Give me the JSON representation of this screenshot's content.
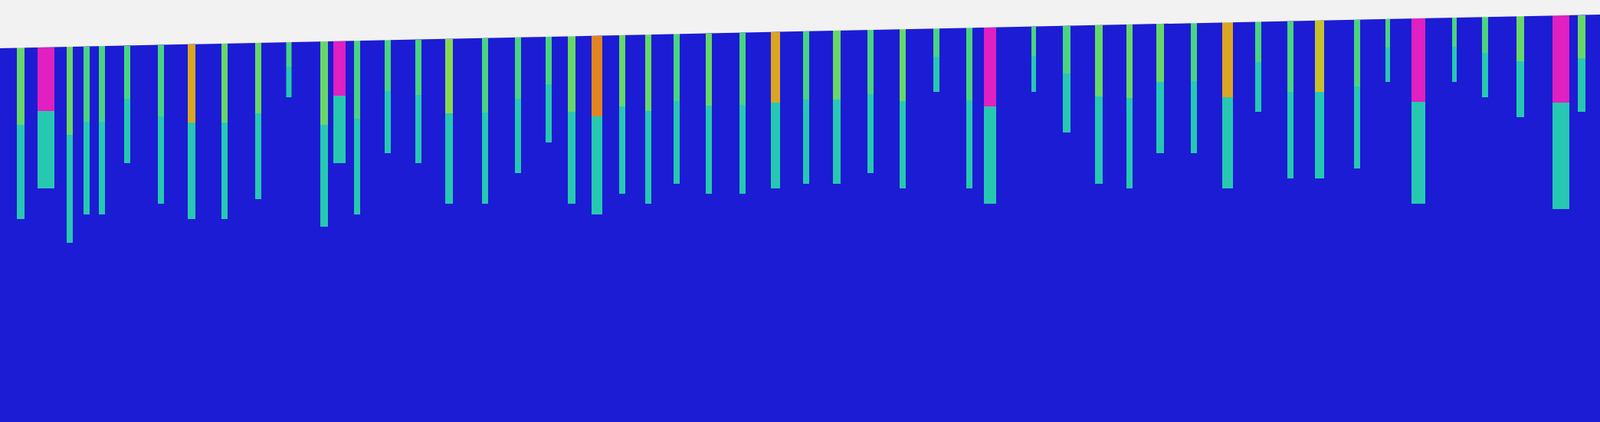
{
  "chart_data": {
    "type": "heatmap",
    "tick_labels": false,
    "xlim": [
      0,
      2088
    ],
    "ylim": [
      551,
      0
    ],
    "zlim": [
      0,
      1
    ],
    "surface": {
      "x": [
        0,
        2088
      ],
      "y": [
        63,
        19
      ],
      "color": "#f2f2f2"
    },
    "cells": [
      {
        "x": 27,
        "width": 10,
        "y0": 62,
        "y1": 163,
        "value": 0.45
      },
      {
        "x": 27,
        "width": 10,
        "y0": 163,
        "y1": 286,
        "value": 0.3
      },
      {
        "x": 60,
        "width": 22,
        "y0": 62,
        "y1": 145,
        "value": 1
      },
      {
        "x": 60,
        "width": 22,
        "y0": 145,
        "y1": 246,
        "value": 0.3
      },
      {
        "x": 91,
        "width": 8,
        "y0": 61,
        "y1": 176,
        "value": 0.45
      },
      {
        "x": 91,
        "width": 8,
        "y0": 176,
        "y1": 317,
        "value": 0.3
      },
      {
        "x": 113,
        "width": 8,
        "y0": 61,
        "y1": 159,
        "value": 0.4
      },
      {
        "x": 113,
        "width": 8,
        "y0": 159,
        "y1": 280,
        "value": 0.3
      },
      {
        "x": 133,
        "width": 8,
        "y0": 60,
        "y1": 159,
        "value": 0.4
      },
      {
        "x": 133,
        "width": 8,
        "y0": 159,
        "y1": 280,
        "value": 0.3
      },
      {
        "x": 166,
        "width": 8,
        "y0": 60,
        "y1": 129,
        "value": 0.4
      },
      {
        "x": 166,
        "width": 8,
        "y0": 129,
        "y1": 213,
        "value": 0.3
      },
      {
        "x": 210,
        "width": 8,
        "y0": 59,
        "y1": 152,
        "value": 0.4
      },
      {
        "x": 210,
        "width": 8,
        "y0": 152,
        "y1": 266,
        "value": 0.3
      },
      {
        "x": 250,
        "width": 10,
        "y0": 58,
        "y1": 160,
        "value": 0.65
      },
      {
        "x": 250,
        "width": 10,
        "y0": 160,
        "y1": 286,
        "value": 0.3
      },
      {
        "x": 293,
        "width": 8,
        "y0": 57,
        "y1": 160,
        "value": 0.45
      },
      {
        "x": 293,
        "width": 8,
        "y0": 160,
        "y1": 286,
        "value": 0.3
      },
      {
        "x": 337,
        "width": 8,
        "y0": 56,
        "y1": 148,
        "value": 0.45
      },
      {
        "x": 337,
        "width": 8,
        "y0": 148,
        "y1": 260,
        "value": 0.3
      },
      {
        "x": 377,
        "width": 7,
        "y0": 55,
        "y1": 87,
        "value": 0.4
      },
      {
        "x": 377,
        "width": 7,
        "y0": 87,
        "y1": 127,
        "value": 0.3
      },
      {
        "x": 423,
        "width": 10,
        "y0": 54,
        "y1": 163,
        "value": 0.45
      },
      {
        "x": 423,
        "width": 10,
        "y0": 163,
        "y1": 296,
        "value": 0.3
      },
      {
        "x": 443,
        "width": 16,
        "y0": 54,
        "y1": 125,
        "value": 1
      },
      {
        "x": 443,
        "width": 16,
        "y0": 125,
        "y1": 213,
        "value": 0.3
      },
      {
        "x": 466,
        "width": 8,
        "y0": 53,
        "y1": 155,
        "value": 0.4
      },
      {
        "x": 466,
        "width": 8,
        "y0": 155,
        "y1": 280,
        "value": 0.3
      },
      {
        "x": 506,
        "width": 8,
        "y0": 52,
        "y1": 119,
        "value": 0.4
      },
      {
        "x": 506,
        "width": 8,
        "y0": 119,
        "y1": 200,
        "value": 0.3
      },
      {
        "x": 546,
        "width": 8,
        "y0": 52,
        "y1": 124,
        "value": 0.4
      },
      {
        "x": 546,
        "width": 8,
        "y0": 124,
        "y1": 213,
        "value": 0.3
      },
      {
        "x": 586,
        "width": 10,
        "y0": 51,
        "y1": 148,
        "value": 0.5
      },
      {
        "x": 586,
        "width": 10,
        "y0": 148,
        "y1": 266,
        "value": 0.3
      },
      {
        "x": 633,
        "width": 8,
        "y0": 50,
        "y1": 147,
        "value": 0.4
      },
      {
        "x": 633,
        "width": 8,
        "y0": 147,
        "y1": 266,
        "value": 0.3
      },
      {
        "x": 676,
        "width": 8,
        "y0": 49,
        "y1": 129,
        "value": 0.4
      },
      {
        "x": 676,
        "width": 8,
        "y0": 129,
        "y1": 226,
        "value": 0.3
      },
      {
        "x": 716,
        "width": 8,
        "y0": 48,
        "y1": 110,
        "value": 0.4
      },
      {
        "x": 716,
        "width": 8,
        "y0": 110,
        "y1": 186,
        "value": 0.3
      },
      {
        "x": 746,
        "width": 10,
        "y0": 47,
        "y1": 146,
        "value": 0.45
      },
      {
        "x": 746,
        "width": 10,
        "y0": 146,
        "y1": 266,
        "value": 0.3
      },
      {
        "x": 779,
        "width": 14,
        "y0": 47,
        "y1": 152,
        "value": 0.7
      },
      {
        "x": 779,
        "width": 14,
        "y0": 152,
        "y1": 280,
        "value": 0.3
      },
      {
        "x": 812,
        "width": 8,
        "y0": 46,
        "y1": 139,
        "value": 0.45
      },
      {
        "x": 812,
        "width": 8,
        "y0": 139,
        "y1": 253,
        "value": 0.3
      },
      {
        "x": 846,
        "width": 8,
        "y0": 45,
        "y1": 145,
        "value": 0.45
      },
      {
        "x": 846,
        "width": 8,
        "y0": 145,
        "y1": 266,
        "value": 0.3
      },
      {
        "x": 883,
        "width": 8,
        "y0": 44,
        "y1": 132,
        "value": 0.4
      },
      {
        "x": 883,
        "width": 8,
        "y0": 132,
        "y1": 240,
        "value": 0.3
      },
      {
        "x": 925,
        "width": 8,
        "y0": 44,
        "y1": 138,
        "value": 0.45
      },
      {
        "x": 925,
        "width": 8,
        "y0": 138,
        "y1": 253,
        "value": 0.3
      },
      {
        "x": 969,
        "width": 8,
        "y0": 43,
        "y1": 137,
        "value": 0.4
      },
      {
        "x": 969,
        "width": 8,
        "y0": 137,
        "y1": 253,
        "value": 0.3
      },
      {
        "x": 1012,
        "width": 12,
        "y0": 42,
        "y1": 134,
        "value": 0.65
      },
      {
        "x": 1012,
        "width": 12,
        "y0": 134,
        "y1": 246,
        "value": 0.3
      },
      {
        "x": 1052,
        "width": 8,
        "y0": 41,
        "y1": 130,
        "value": 0.4
      },
      {
        "x": 1052,
        "width": 8,
        "y0": 130,
        "y1": 240,
        "value": 0.3
      },
      {
        "x": 1092,
        "width": 10,
        "y0": 40,
        "y1": 130,
        "value": 0.45
      },
      {
        "x": 1092,
        "width": 10,
        "y0": 130,
        "y1": 240,
        "value": 0.3
      },
      {
        "x": 1136,
        "width": 8,
        "y0": 39,
        "y1": 123,
        "value": 0.4
      },
      {
        "x": 1136,
        "width": 8,
        "y0": 123,
        "y1": 226,
        "value": 0.3
      },
      {
        "x": 1178,
        "width": 8,
        "y0": 38,
        "y1": 132,
        "value": 0.45
      },
      {
        "x": 1178,
        "width": 8,
        "y0": 132,
        "y1": 246,
        "value": 0.3
      },
      {
        "x": 1222,
        "width": 8,
        "y0": 37,
        "y1": 74,
        "value": 0.4
      },
      {
        "x": 1222,
        "width": 8,
        "y0": 74,
        "y1": 120,
        "value": 0.3
      },
      {
        "x": 1265,
        "width": 8,
        "y0": 36,
        "y1": 131,
        "value": 0.4
      },
      {
        "x": 1265,
        "width": 8,
        "y0": 131,
        "y1": 246,
        "value": 0.3
      },
      {
        "x": 1292,
        "width": 16,
        "y0": 36,
        "y1": 139,
        "value": 1
      },
      {
        "x": 1292,
        "width": 16,
        "y0": 139,
        "y1": 266,
        "value": 0.3
      },
      {
        "x": 1349,
        "width": 6,
        "y0": 35,
        "y1": 73,
        "value": 0.4
      },
      {
        "x": 1349,
        "width": 6,
        "y0": 73,
        "y1": 120,
        "value": 0.3
      },
      {
        "x": 1392,
        "width": 10,
        "y0": 34,
        "y1": 96,
        "value": 0.4
      },
      {
        "x": 1392,
        "width": 10,
        "y0": 96,
        "y1": 173,
        "value": 0.3
      },
      {
        "x": 1434,
        "width": 10,
        "y0": 33,
        "y1": 126,
        "value": 0.45
      },
      {
        "x": 1434,
        "width": 10,
        "y0": 126,
        "y1": 240,
        "value": 0.3
      },
      {
        "x": 1474,
        "width": 8,
        "y0": 32,
        "y1": 128,
        "value": 0.45
      },
      {
        "x": 1474,
        "width": 8,
        "y0": 128,
        "y1": 246,
        "value": 0.3
      },
      {
        "x": 1514,
        "width": 10,
        "y0": 31,
        "y1": 107,
        "value": 0.45
      },
      {
        "x": 1514,
        "width": 10,
        "y0": 107,
        "y1": 200,
        "value": 0.3
      },
      {
        "x": 1558,
        "width": 8,
        "y0": 30,
        "y1": 106,
        "value": 0.4
      },
      {
        "x": 1558,
        "width": 8,
        "y0": 106,
        "y1": 200,
        "value": 0.3
      },
      {
        "x": 1602,
        "width": 14,
        "y0": 29,
        "y1": 127,
        "value": 0.65
      },
      {
        "x": 1602,
        "width": 14,
        "y0": 127,
        "y1": 246,
        "value": 0.3
      },
      {
        "x": 1642,
        "width": 8,
        "y0": 28,
        "y1": 81,
        "value": 0.4
      },
      {
        "x": 1642,
        "width": 8,
        "y0": 81,
        "y1": 146,
        "value": 0.3
      },
      {
        "x": 1684,
        "width": 8,
        "y0": 28,
        "y1": 120,
        "value": 0.4
      },
      {
        "x": 1684,
        "width": 8,
        "y0": 120,
        "y1": 233,
        "value": 0.3
      },
      {
        "x": 1722,
        "width": 12,
        "y0": 27,
        "y1": 120,
        "value": 0.6
      },
      {
        "x": 1722,
        "width": 12,
        "y0": 120,
        "y1": 233,
        "value": 0.3
      },
      {
        "x": 1771,
        "width": 8,
        "y0": 26,
        "y1": 113,
        "value": 0.4
      },
      {
        "x": 1771,
        "width": 8,
        "y0": 113,
        "y1": 220,
        "value": 0.3
      },
      {
        "x": 1811,
        "width": 6,
        "y0": 25,
        "y1": 62,
        "value": 0.4
      },
      {
        "x": 1811,
        "width": 6,
        "y0": 62,
        "y1": 107,
        "value": 0.3
      },
      {
        "x": 1851,
        "width": 18,
        "y0": 24,
        "y1": 133,
        "value": 1
      },
      {
        "x": 1851,
        "width": 18,
        "y0": 133,
        "y1": 266,
        "value": 0.3
      },
      {
        "x": 1898,
        "width": 6,
        "y0": 23,
        "y1": 61,
        "value": 0.4
      },
      {
        "x": 1898,
        "width": 6,
        "y0": 61,
        "y1": 107,
        "value": 0.3
      },
      {
        "x": 1938,
        "width": 8,
        "y0": 22,
        "y1": 69,
        "value": 0.4
      },
      {
        "x": 1938,
        "width": 8,
        "y0": 69,
        "y1": 127,
        "value": 0.3
      },
      {
        "x": 1984,
        "width": 10,
        "y0": 21,
        "y1": 80,
        "value": 0.45
      },
      {
        "x": 1984,
        "width": 10,
        "y0": 80,
        "y1": 153,
        "value": 0.3
      },
      {
        "x": 2037,
        "width": 22,
        "y0": 20,
        "y1": 134,
        "value": 1
      },
      {
        "x": 2037,
        "width": 22,
        "y0": 134,
        "y1": 273,
        "value": 0.3
      },
      {
        "x": 2064,
        "width": 10,
        "y0": 20,
        "y1": 76,
        "value": 0.45
      },
      {
        "x": 2064,
        "width": 10,
        "y0": 76,
        "y1": 146,
        "value": 0.3
      }
    ]
  }
}
